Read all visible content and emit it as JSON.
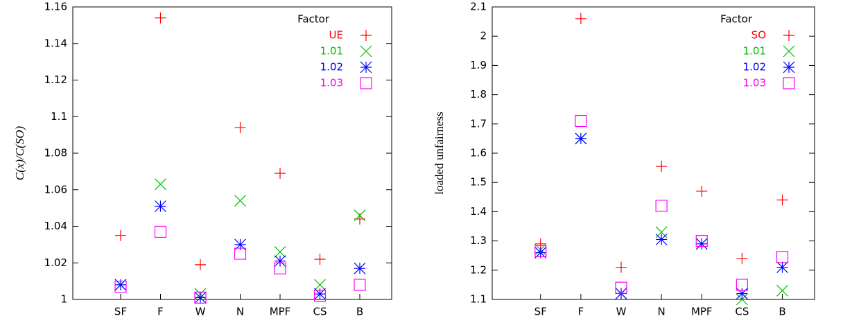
{
  "chart_data": [
    {
      "type": "scatter",
      "ylabel": "C(x)/C(SO)",
      "legend_title": "Factor",
      "legend": "upper right",
      "categories": [
        "SF",
        "F",
        "W",
        "N",
        "MPF",
        "CS",
        "B"
      ],
      "ylim": [
        1,
        1.16
      ],
      "yticks": [
        1,
        1.02,
        1.04,
        1.06,
        1.08,
        1.1,
        1.12,
        1.14,
        1.16
      ],
      "series": [
        {
          "name": "UE",
          "color": "#ff0000",
          "marker": "plus",
          "values": [
            1.035,
            1.154,
            1.019,
            1.094,
            1.069,
            1.022,
            1.044
          ]
        },
        {
          "name": "1.01",
          "color": "#00c000",
          "marker": "cross",
          "values": [
            1.008,
            1.063,
            1.003,
            1.054,
            1.026,
            1.008,
            1.046
          ]
        },
        {
          "name": "1.02",
          "color": "#0000ff",
          "marker": "star",
          "values": [
            1.008,
            1.051,
            1.001,
            1.03,
            1.021,
            1.003,
            1.017
          ]
        },
        {
          "name": "1.03",
          "color": "#ff00ff",
          "marker": "square",
          "values": [
            1.007,
            1.037,
            1.001,
            1.025,
            1.017,
            1.002,
            1.008
          ]
        }
      ]
    },
    {
      "type": "scatter",
      "ylabel": "loaded unfairness",
      "legend_title": "Factor",
      "legend": "upper right",
      "categories": [
        "SF",
        "F",
        "W",
        "N",
        "MPF",
        "CS",
        "B"
      ],
      "ylim": [
        1.1,
        2.1
      ],
      "yticks": [
        1.1,
        1.2,
        1.3,
        1.4,
        1.5,
        1.6,
        1.7,
        1.8,
        1.9,
        2,
        2.1
      ],
      "series": [
        {
          "name": "SO",
          "color": "#ff0000",
          "marker": "plus",
          "values": [
            1.29,
            2.06,
            1.21,
            1.555,
            1.47,
            1.24,
            1.44
          ]
        },
        {
          "name": "1.01",
          "color": "#00c000",
          "marker": "cross",
          "values": [
            1.27,
            1.65,
            1.12,
            1.33,
            1.29,
            1.1,
            1.13
          ]
        },
        {
          "name": "1.02",
          "color": "#0000ff",
          "marker": "star",
          "values": [
            1.26,
            1.65,
            1.12,
            1.305,
            1.29,
            1.12,
            1.21
          ]
        },
        {
          "name": "1.03",
          "color": "#ff00ff",
          "marker": "square",
          "values": [
            1.265,
            1.71,
            1.14,
            1.42,
            1.3,
            1.15,
            1.245
          ]
        }
      ]
    }
  ]
}
